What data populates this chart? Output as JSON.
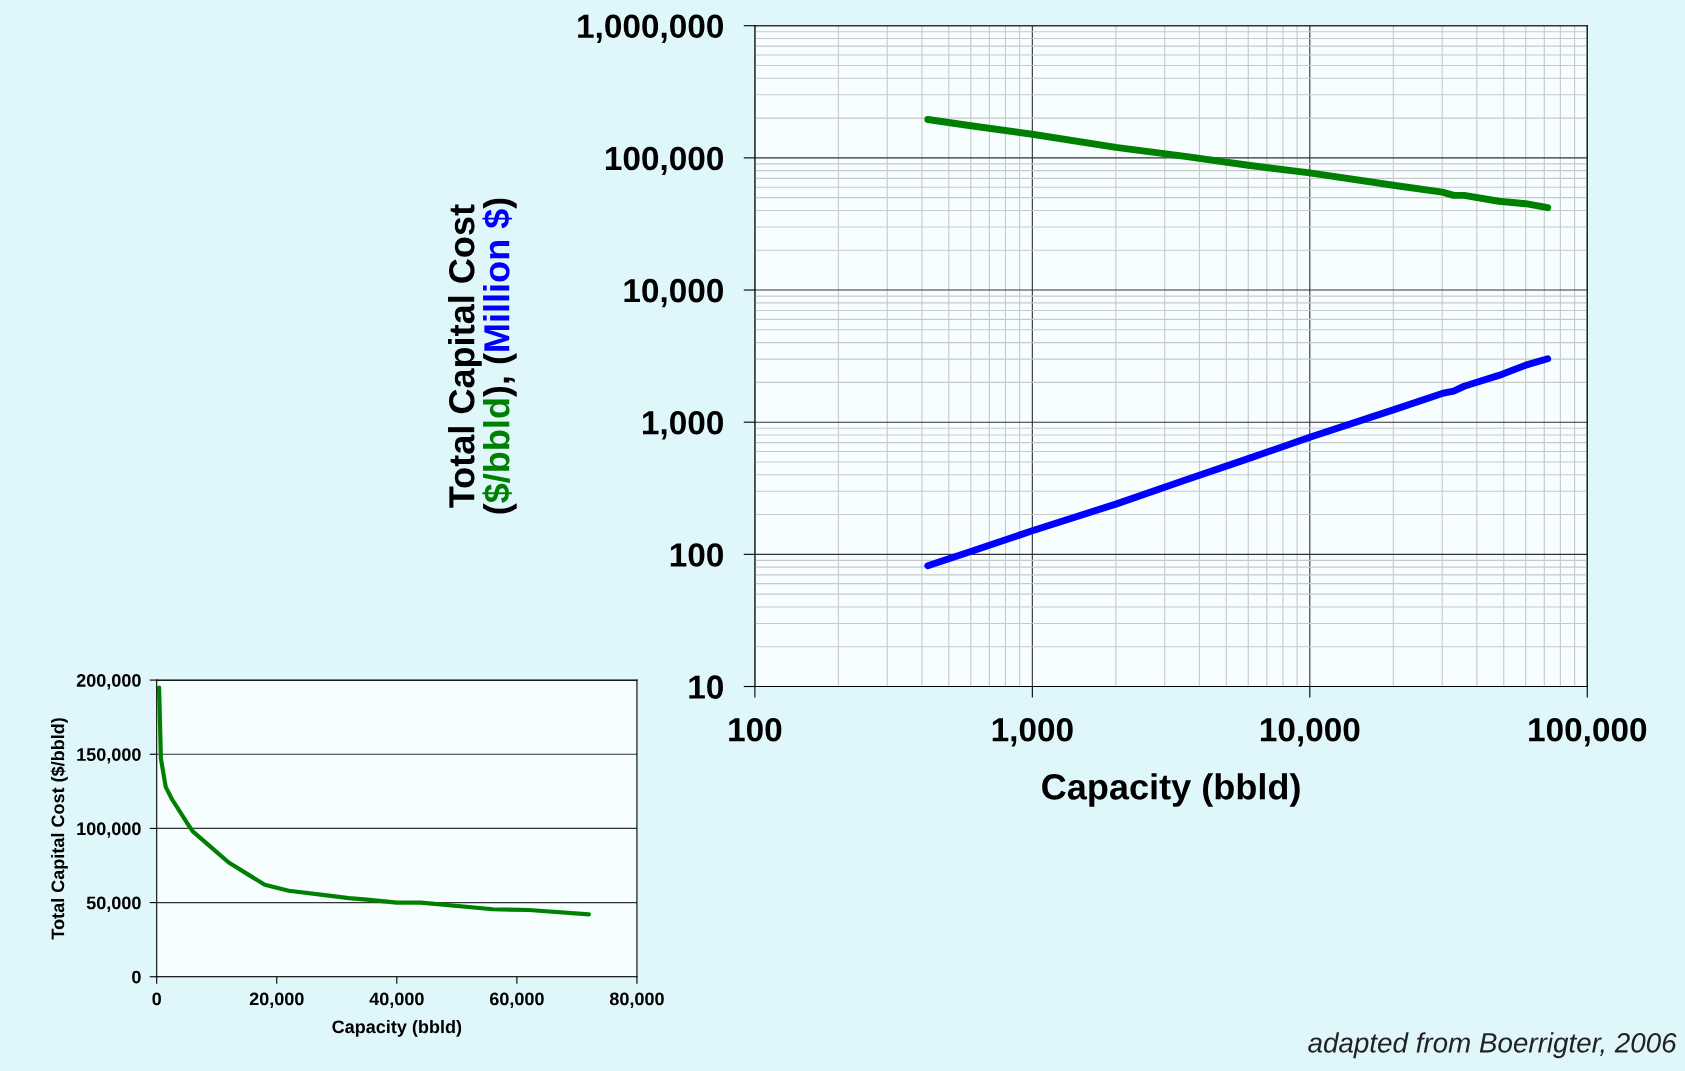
{
  "chart_data": [
    {
      "type": "line",
      "xlabel": "Capacity (bbld)",
      "ylabel": "Total Capital Cost\n($/bbld), (Million $)",
      "log": "xy",
      "grid": true,
      "xlim": [
        100,
        100000
      ],
      "ylim": [
        10,
        1000000
      ],
      "xticks": [
        {
          "value": 100,
          "label": "100"
        },
        {
          "value": 1000,
          "label": "1,000"
        },
        {
          "value": 10000,
          "label": "10,000"
        },
        {
          "value": 100000,
          "label": "100,000"
        }
      ],
      "yticks": [
        {
          "value": 10,
          "label": "10"
        },
        {
          "value": 100,
          "label": "100"
        },
        {
          "value": 1000,
          "label": "1,000"
        },
        {
          "value": 10000,
          "label": "10,000"
        },
        {
          "value": 100000,
          "label": "100,000"
        },
        {
          "value": 1000000,
          "label": "1,000,000"
        }
      ],
      "x": [
        420,
        600,
        1000,
        2000,
        3500,
        6000,
        10000,
        20000,
        30000,
        33000,
        36000,
        48000,
        60000,
        72000
      ],
      "series": [
        {
          "color": "#008000",
          "values": [
            195000,
            175000,
            151000,
            120000,
            103000,
            88000,
            77000,
            62000,
            55000,
            52000,
            52000,
            47000,
            45000,
            42000
          ]
        },
        {
          "color": "#0000ff",
          "values": [
            82,
            105,
            151,
            240,
            360,
            530,
            770,
            1240,
            1650,
            1720,
            1870,
            2260,
            2700,
            3020
          ]
        }
      ],
      "annotations": [
        "adapted from Boerrigter, 2006"
      ]
    },
    {
      "type": "line",
      "xlabel": "Capacity (bbld)",
      "ylabel": "Total Capital Cost ($/bbld)",
      "grid": "y",
      "xlim": [
        0,
        80000
      ],
      "ylim": [
        0,
        200000
      ],
      "xticks": [
        {
          "value": 0,
          "label": "0"
        },
        {
          "value": 20000,
          "label": "20,000"
        },
        {
          "value": 40000,
          "label": "40,000"
        },
        {
          "value": 60000,
          "label": "60,000"
        },
        {
          "value": 80000,
          "label": "80,000"
        }
      ],
      "yticks": [
        {
          "value": 0,
          "label": "0"
        },
        {
          "value": 50000,
          "label": "50,000"
        },
        {
          "value": 100000,
          "label": "100,000"
        },
        {
          "value": 150000,
          "label": "150,000"
        },
        {
          "value": 200000,
          "label": "200,000"
        }
      ],
      "x": [
        400,
        700,
        1500,
        2500,
        5000,
        6000,
        10000,
        12000,
        16000,
        18000,
        22000,
        28000,
        32000,
        35000,
        40000,
        44000,
        56000,
        62000,
        72000
      ],
      "series": [
        {
          "color": "#008000",
          "values": [
            195000,
            147000,
            128000,
            120000,
            104000,
            98000,
            84000,
            77000,
            67000,
            62000,
            58000,
            55000,
            53000,
            52000,
            50000,
            50000,
            45500,
            45000,
            42000
          ]
        }
      ]
    }
  ]
}
